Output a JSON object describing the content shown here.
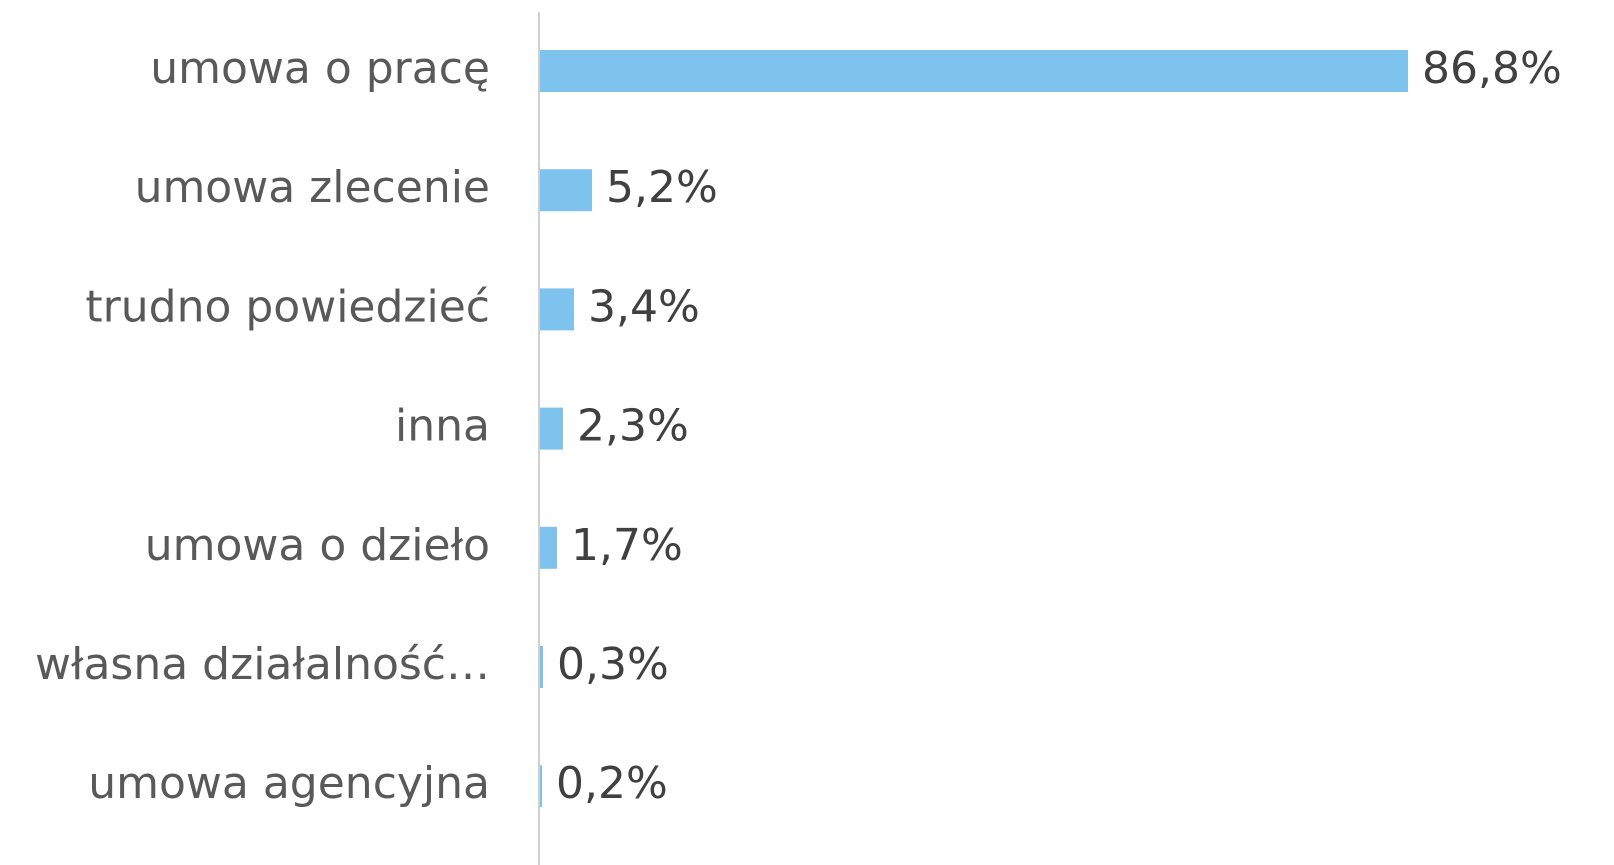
{
  "chart_data": {
    "type": "bar",
    "orientation": "horizontal",
    "categories": [
      "umowa o pracę",
      "umowa zlecenie",
      "trudno powiedzieć",
      "inna",
      "umowa o dzieło",
      "własna działalność…",
      "umowa agencyjna"
    ],
    "values": [
      86.8,
      5.2,
      3.4,
      2.3,
      1.7,
      0.3,
      0.2
    ],
    "value_labels": [
      "86,8%",
      "5,2%",
      "3,4%",
      "2,3%",
      "1,7%",
      "0,3%",
      "0,2%"
    ],
    "color": "#7dc3ee"
  }
}
